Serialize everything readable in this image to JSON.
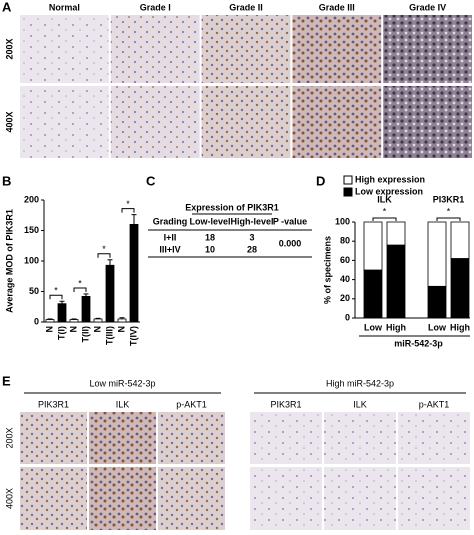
{
  "panel_labels": [
    "A",
    "B",
    "C",
    "D",
    "E"
  ],
  "panel_a": {
    "columns": [
      "Normal",
      "Grade I",
      "Grade II",
      "Grade III",
      "Grade IV"
    ],
    "rows": [
      "200X",
      "400X"
    ]
  },
  "chart_data": [
    {
      "type": "bar",
      "ylabel": "Average MOD of PIK3R1",
      "categories": [
        "N",
        "T(I)",
        "N",
        "T(II)",
        "N",
        "T(III)",
        "N",
        "T(IV)"
      ],
      "values": [
        4,
        30,
        4,
        42,
        5,
        93,
        5,
        160
      ],
      "errors": [
        1,
        4,
        1,
        4,
        1,
        9,
        2,
        16
      ],
      "colors": [
        "#ffffff",
        "#000000",
        "#ffffff",
        "#000000",
        "#ffffff",
        "#000000",
        "#ffffff",
        "#000000"
      ],
      "ylim": [
        0,
        200
      ],
      "yticks": [
        0,
        50,
        100,
        150,
        200
      ],
      "annotations": [
        "*",
        "*",
        "*",
        "*"
      ]
    },
    {
      "type": "stacked_bar",
      "ylabel": "% of specimens",
      "xlabel": "miR-542-3p",
      "categories": [
        "Low",
        "High",
        "Low",
        "High"
      ],
      "groups": [
        "ILK",
        "PI3KR1"
      ],
      "series": [
        {
          "name": "High expression",
          "color": "#ffffff",
          "values": [
            50,
            24,
            67,
            38
          ]
        },
        {
          "name": "Low expression",
          "color": "#000000",
          "values": [
            50,
            76,
            33,
            62
          ]
        }
      ],
      "ylim": [
        0,
        100
      ],
      "yticks": [
        0,
        20,
        40,
        60,
        80,
        100
      ],
      "annotations": [
        "*",
        "*"
      ]
    }
  ],
  "table": {
    "title": "Expression of PIK3R1",
    "header": [
      "Grading",
      "Low-level",
      "High-level",
      "P -value"
    ],
    "rows": [
      [
        "I+II",
        "18",
        "3"
      ],
      [
        "III+IV",
        "10",
        "28"
      ]
    ],
    "p_value": "0.000"
  },
  "panel_e": {
    "groups": [
      "Low miR-542-3p",
      "High miR-542-3p"
    ],
    "columns": [
      "PIK3R1",
      "ILK",
      "p-AKT1"
    ],
    "rows": [
      "200X",
      "400X"
    ]
  }
}
